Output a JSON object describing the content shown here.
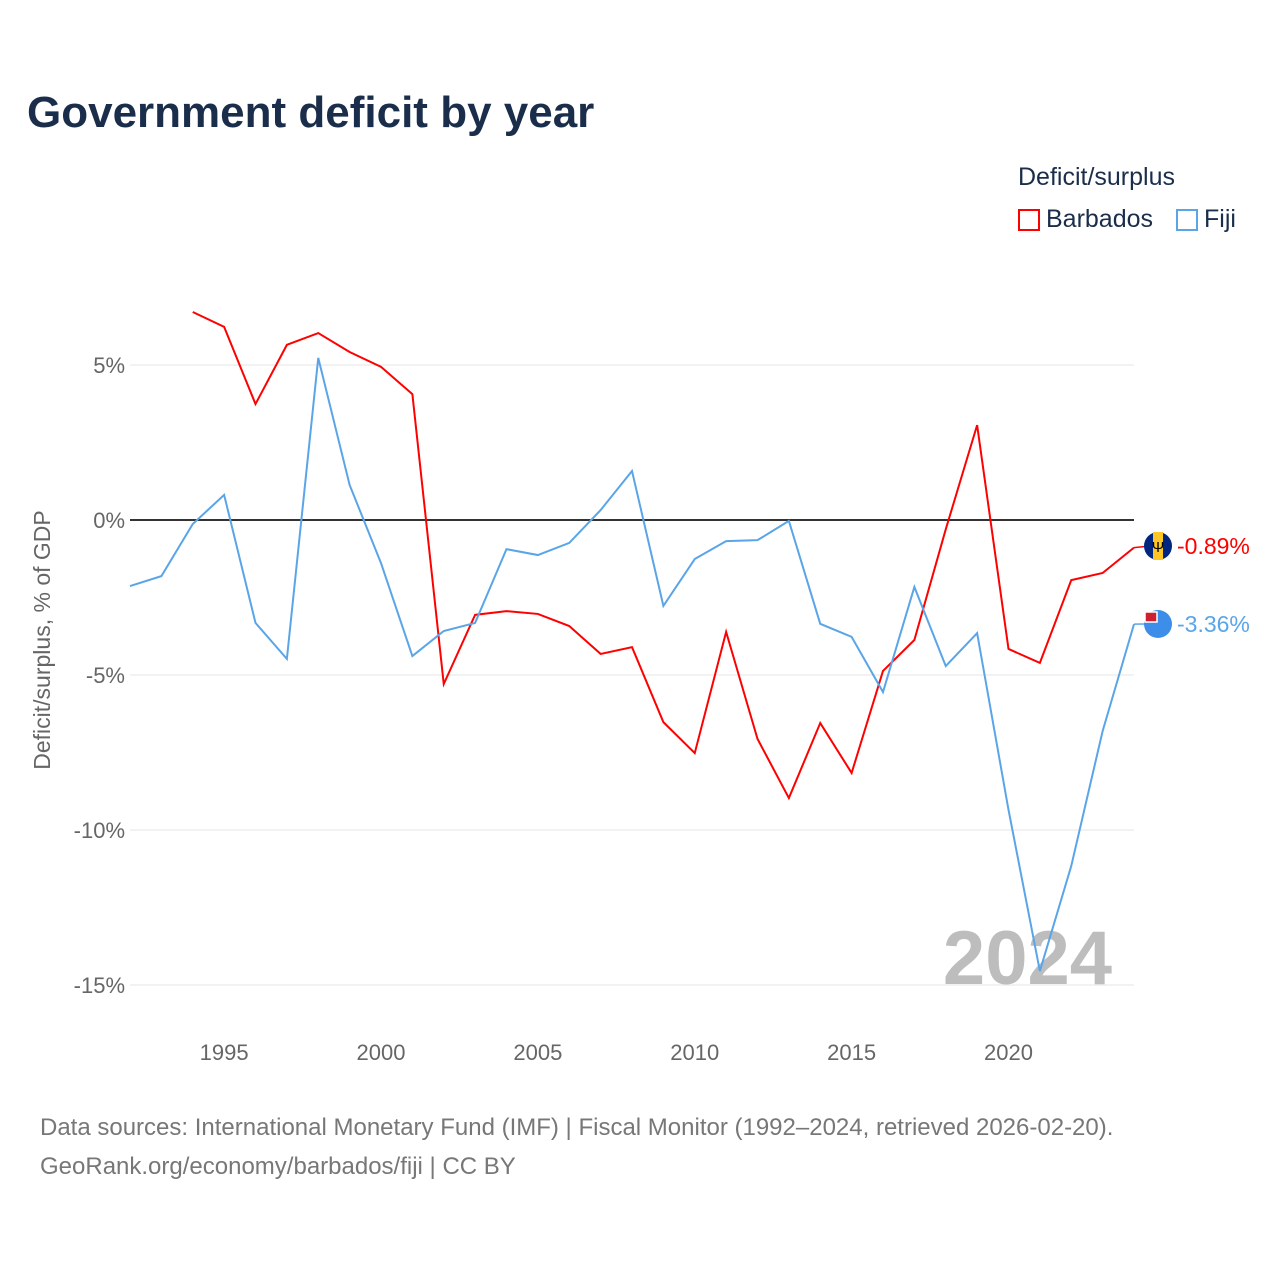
{
  "title": "Government deficit by year",
  "legend": {
    "title": "Deficit/surplus",
    "items": [
      "Barbados",
      "Fiji"
    ]
  },
  "source": {
    "line1": "Data sources: International Monetary Fund (IMF) | Fiscal Monitor (1992–2024, retrieved 2026-02-20).",
    "line2": "GeoRank.org/economy/barbados/fiji | CC BY"
  },
  "chart_data": {
    "type": "line",
    "title": "Government deficit by year",
    "xlabel": "",
    "ylabel": "Deficit/surplus, % of GDP",
    "xlim": [
      1992,
      2024
    ],
    "ylim": [
      -16.5,
      7.5
    ],
    "yticks": [
      5,
      0,
      -5,
      -10,
      -15
    ],
    "ytick_labels": [
      "5%",
      "0%",
      "-5%",
      "-10%",
      "-15%"
    ],
    "xticks": [
      1995,
      2000,
      2005,
      2010,
      2015,
      2020
    ],
    "xtick_labels": [
      "1995",
      "2000",
      "2005",
      "2010",
      "2015",
      "2020"
    ],
    "watermark": "2024",
    "series": [
      {
        "name": "Barbados",
        "color": "#ff0000",
        "end_label": "-0.89%",
        "x": [
          1994,
          1995,
          1996,
          1997,
          1998,
          1999,
          2000,
          2001,
          2002,
          2003,
          2004,
          2005,
          2006,
          2007,
          2008,
          2009,
          2010,
          2011,
          2012,
          2013,
          2014,
          2015,
          2016,
          2017,
          2018,
          2019,
          2020,
          2021,
          2022,
          2023,
          2024
        ],
        "values": [
          6.71,
          6.23,
          3.74,
          5.65,
          6.03,
          5.42,
          4.94,
          4.06,
          -5.29,
          -3.06,
          -2.94,
          -3.03,
          -3.42,
          -4.32,
          -4.1,
          -6.52,
          -7.52,
          -3.61,
          -7.06,
          -8.97,
          -6.55,
          -8.16,
          -4.87,
          -3.87,
          -0.3,
          3.06,
          -4.16,
          -4.61,
          -1.94,
          -1.71,
          -0.89
        ]
      },
      {
        "name": "Fiji",
        "color": "#5aa5e8",
        "end_label": "-3.36%",
        "x": [
          1992,
          1993,
          1994,
          1995,
          1996,
          1997,
          1998,
          1999,
          2000,
          2001,
          2002,
          2003,
          2004,
          2005,
          2006,
          2007,
          2008,
          2009,
          2010,
          2011,
          2012,
          2013,
          2014,
          2015,
          2016,
          2017,
          2018,
          2019,
          2020,
          2021,
          2022,
          2023,
          2024
        ],
        "values": [
          -2.13,
          -1.81,
          -0.13,
          0.81,
          -3.32,
          -4.48,
          5.23,
          1.13,
          -1.39,
          -4.39,
          -3.58,
          -3.32,
          -0.94,
          -1.13,
          -0.74,
          0.32,
          1.58,
          -2.77,
          -1.26,
          -0.68,
          -0.65,
          -0.03,
          -3.35,
          -3.77,
          -5.55,
          -2.16,
          -4.71,
          -3.65,
          -9.35,
          -14.55,
          -11.16,
          -6.81,
          -3.36
        ]
      }
    ]
  }
}
